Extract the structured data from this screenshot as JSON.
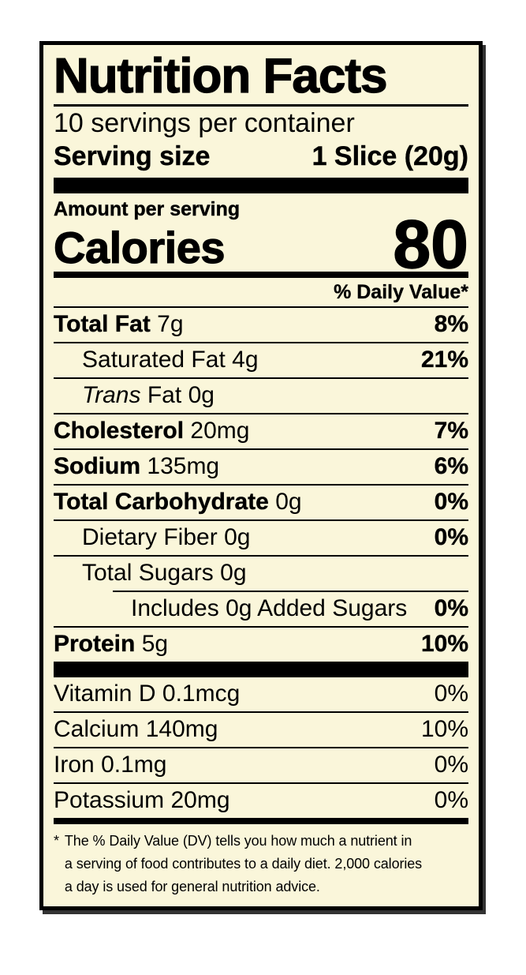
{
  "colors": {
    "label_bg": "#FAF6DA",
    "page_bg": "#FFFFFF",
    "ink": "#000000"
  },
  "header": {
    "title": "Nutrition Facts",
    "servings_per_container": "10 servings per container",
    "serving_size_label": "Serving size",
    "serving_size_value": "1 Slice (20g)"
  },
  "calories": {
    "amount_per_serving_label": "Amount per serving",
    "label": "Calories",
    "value": "80"
  },
  "daily_value_header": "% Daily Value*",
  "nutrients": [
    {
      "name": "Total Fat",
      "amount": "7g",
      "dv": "8%"
    },
    {
      "name": "Saturated Fat",
      "amount": "4g",
      "dv": "21%"
    },
    {
      "name_italic": "Trans",
      "name": "Fat",
      "amount": "0g",
      "dv": ""
    },
    {
      "name": "Cholesterol",
      "amount": "20mg",
      "dv": "7%"
    },
    {
      "name": "Sodium",
      "amount": "135mg",
      "dv": "6%"
    },
    {
      "name": "Total Carbohydrate",
      "amount": "0g",
      "dv": "0%"
    },
    {
      "name": "Dietary Fiber",
      "amount": "0g",
      "dv": "0%"
    },
    {
      "name": "Total Sugars",
      "amount": "0g",
      "dv": ""
    },
    {
      "name": "Includes 0g Added Sugars",
      "amount": "",
      "dv": "0%"
    },
    {
      "name": "Protein",
      "amount": "5g",
      "dv": "10%"
    }
  ],
  "micronutrients": [
    {
      "name": "Vitamin D",
      "amount": "0.1mcg",
      "dv": "0%"
    },
    {
      "name": "Calcium",
      "amount": "140mg",
      "dv": "10%"
    },
    {
      "name": "Iron",
      "amount": "0.1mg",
      "dv": "0%"
    },
    {
      "name": "Potassium",
      "amount": "20mg",
      "dv": "0%"
    }
  ],
  "footnote": {
    "marker": "*",
    "lines": [
      "The % Daily Value (DV) tells you how much a nutrient in",
      "a serving of food contributes to a daily diet. 2,000 calories",
      "a day is used for general nutrition advice."
    ]
  }
}
